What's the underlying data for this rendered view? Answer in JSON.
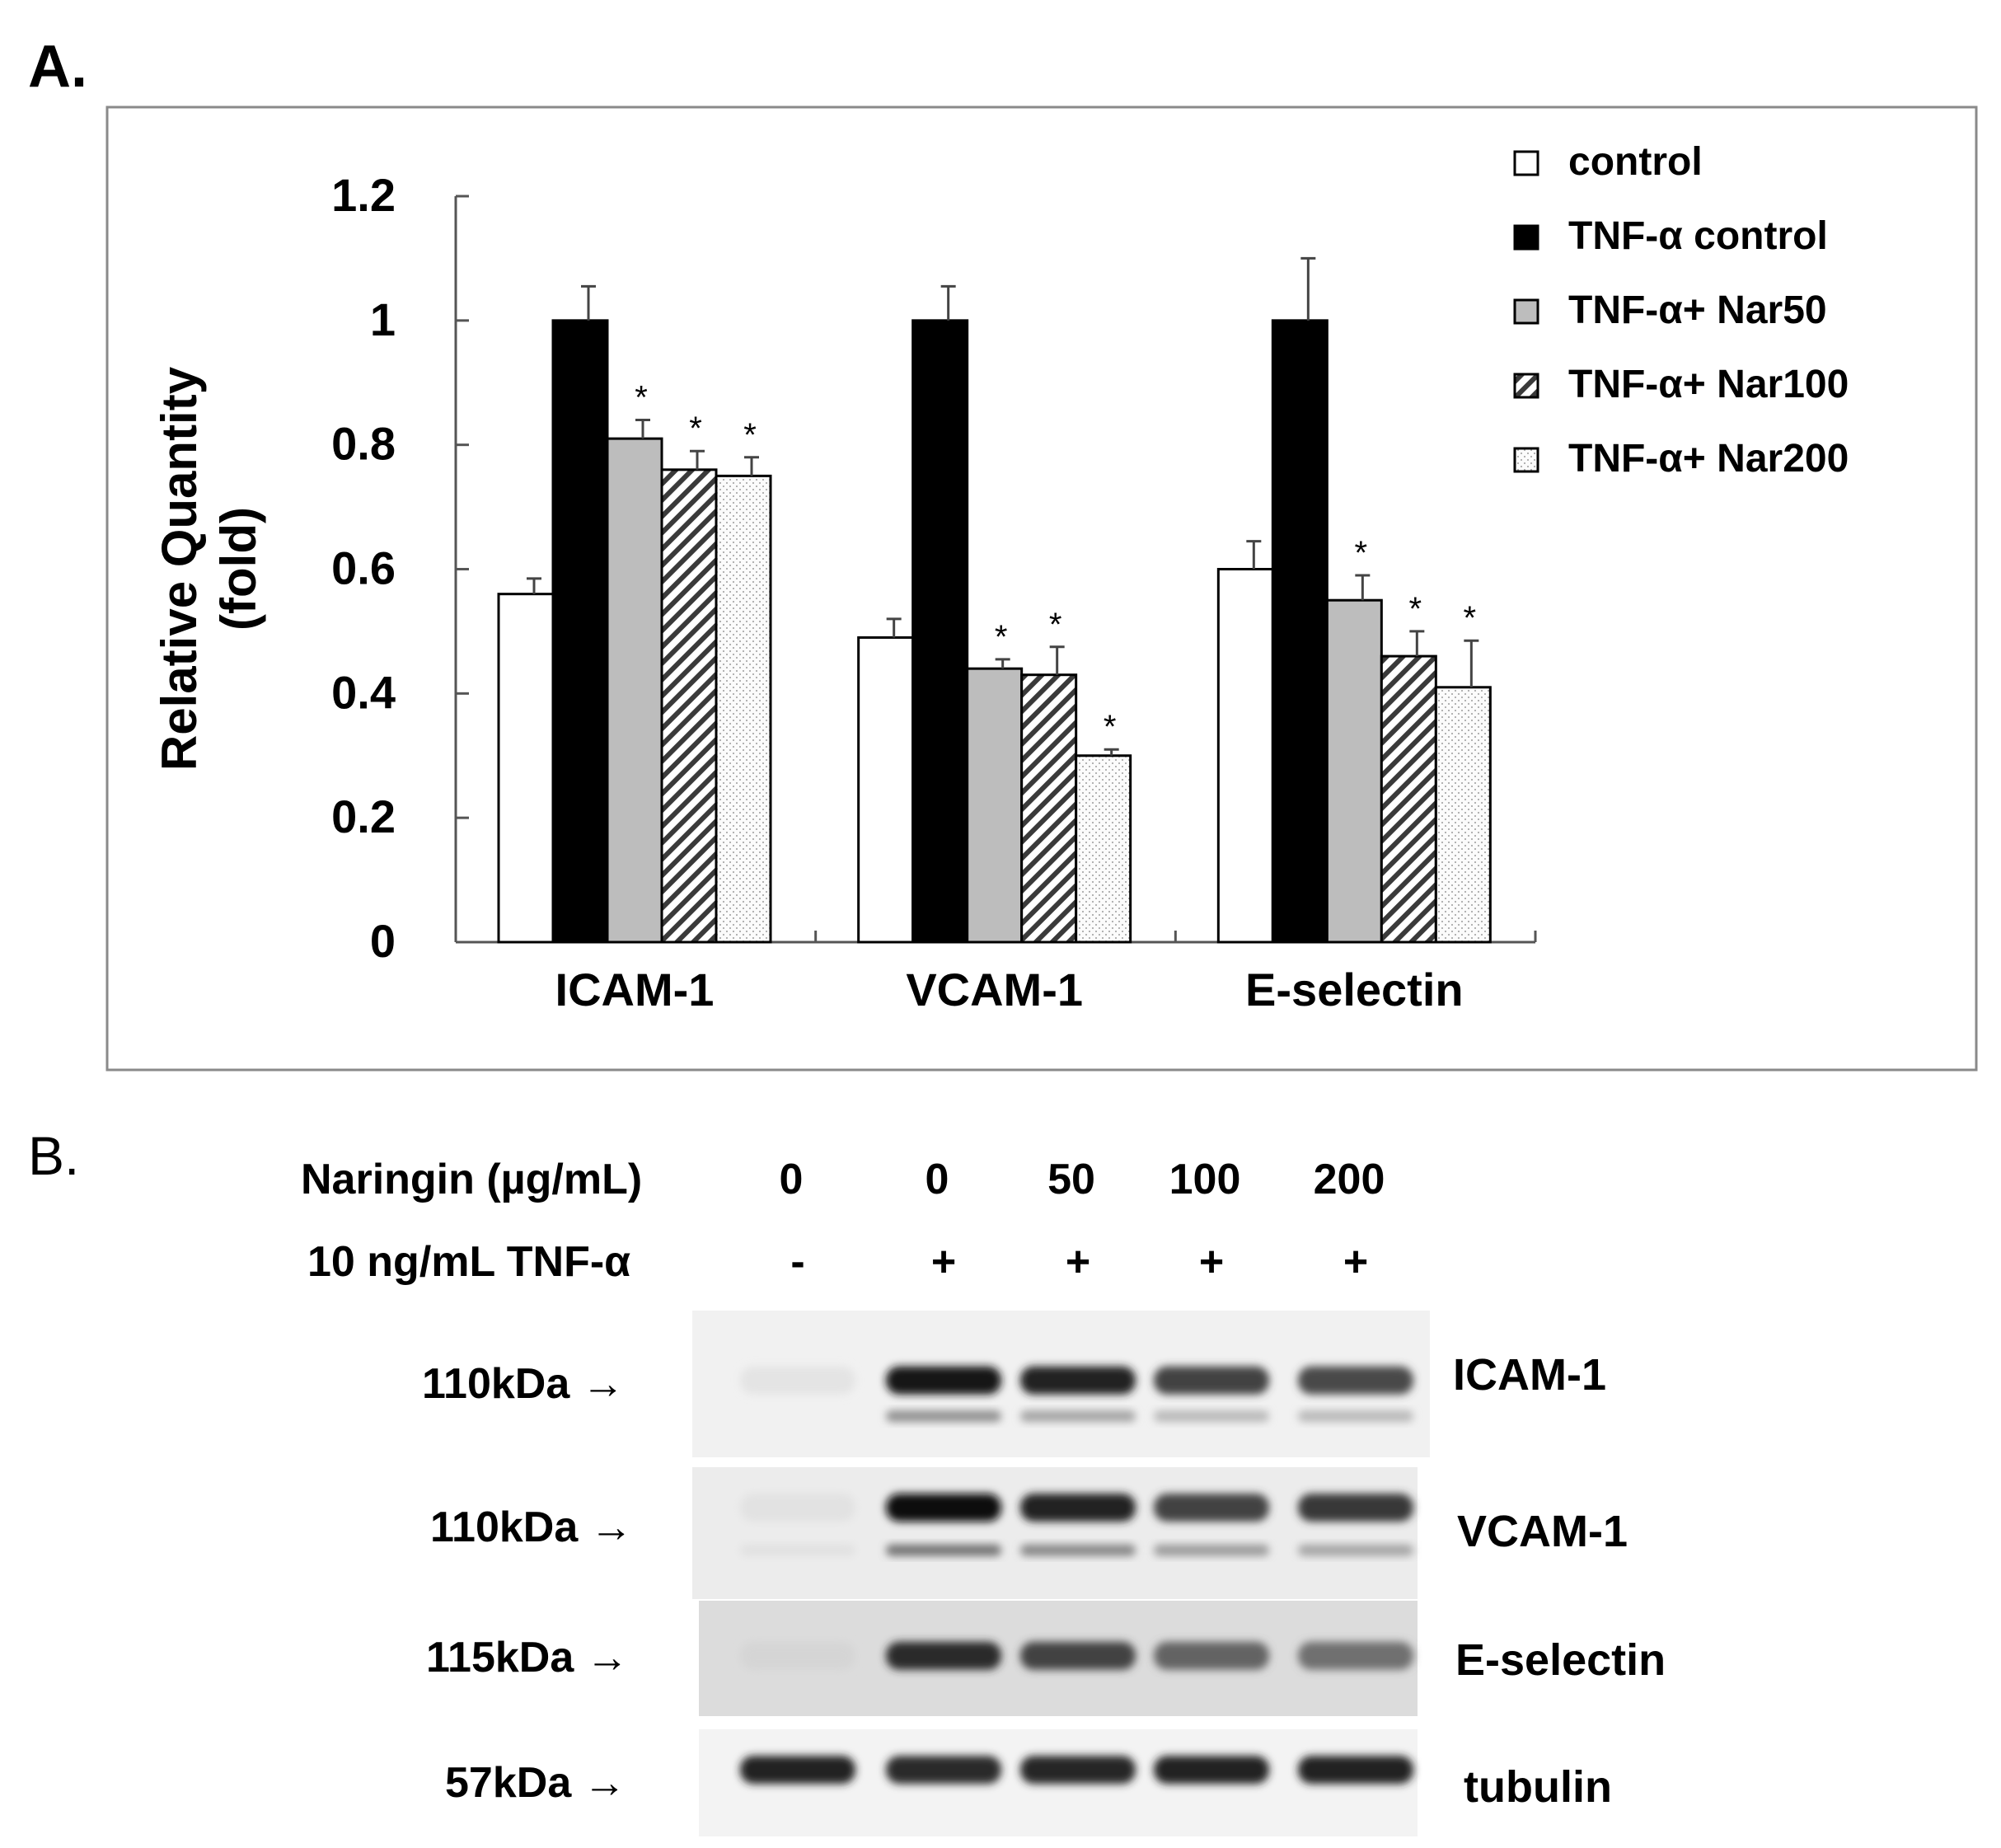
{
  "panel_a": {
    "label": "A."
  },
  "panel_b": {
    "label": "B.",
    "naringin_label": "Naringin (µg/mL)",
    "naringin_values": [
      "0",
      "0",
      "50",
      "100",
      "200"
    ],
    "tnf_label": "10 ng/mL TNF-α",
    "tnf_values": [
      "-",
      "+",
      "+",
      "+",
      "+"
    ],
    "blots": [
      {
        "mw": "110kDa →",
        "name": "ICAM-1",
        "bg": "#f1f1f1",
        "bands": [
          0.03,
          0.95,
          0.9,
          0.75,
          0.72
        ],
        "lower_bands": [
          0.0,
          0.45,
          0.35,
          0.25,
          0.25
        ]
      },
      {
        "mw": "110kDa →",
        "name": "VCAM-1",
        "bg": "#ececec",
        "bands": [
          0.04,
          1.0,
          0.9,
          0.75,
          0.8
        ],
        "lower_bands": [
          0.05,
          0.6,
          0.5,
          0.4,
          0.35
        ]
      },
      {
        "mw": "115kDa →",
        "name": "E-selectin",
        "bg": "#dcdcdc",
        "bands": [
          0.1,
          0.85,
          0.75,
          0.6,
          0.55
        ],
        "lower_bands": [
          0.0,
          0.0,
          0.0,
          0.0,
          0.0
        ]
      },
      {
        "mw": "57kDa →",
        "name": "tubulin",
        "bg": "#f3f3f3",
        "bands": [
          0.9,
          0.85,
          0.88,
          0.9,
          0.9
        ],
        "lower_bands": [
          0.0,
          0.0,
          0.0,
          0.0,
          0.0
        ]
      }
    ]
  },
  "chart_data": {
    "type": "bar",
    "title": "",
    "xlabel": "",
    "ylabel": "Relative Quantity\n(fold)",
    "ylim": [
      0,
      1.2
    ],
    "yticks": [
      "0",
      "0.2",
      "0.4",
      "0.6",
      "0.8",
      "1",
      "1.2"
    ],
    "categories": [
      "ICAM-1",
      "VCAM-1",
      "E-selectin"
    ],
    "legend_position": "top-right",
    "significance_marker": "*",
    "series": [
      {
        "name": "control",
        "style": "white",
        "values": [
          0.56,
          0.49,
          0.6
        ],
        "errors": [
          0.025,
          0.03,
          0.045
        ],
        "significant": [
          false,
          false,
          false
        ]
      },
      {
        "name": "TNF-α control",
        "style": "black",
        "values": [
          1.0,
          1.0,
          1.0
        ],
        "errors": [
          0.055,
          0.055,
          0.1
        ],
        "significant": [
          false,
          false,
          false
        ]
      },
      {
        "name": "TNF-α+ Nar50",
        "style": "gray",
        "values": [
          0.81,
          0.44,
          0.55
        ],
        "errors": [
          0.03,
          0.015,
          0.04
        ],
        "significant": [
          true,
          true,
          true
        ]
      },
      {
        "name": "TNF-α+ Nar100",
        "style": "hatch",
        "values": [
          0.76,
          0.43,
          0.46
        ],
        "errors": [
          0.03,
          0.045,
          0.04
        ],
        "significant": [
          true,
          true,
          true
        ]
      },
      {
        "name": "TNF-α+ Nar200",
        "style": "dots",
        "values": [
          0.75,
          0.3,
          0.41
        ],
        "errors": [
          0.03,
          0.01,
          0.075
        ],
        "significant": [
          true,
          true,
          true
        ]
      }
    ]
  }
}
